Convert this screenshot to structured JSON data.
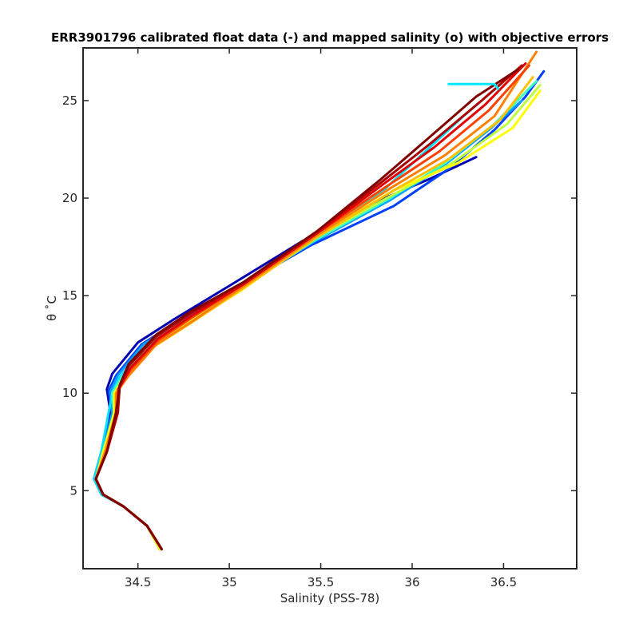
{
  "chart_data": {
    "type": "line",
    "title": "ERR3901796 calibrated float data (-) and mapped salinity (o) with objective errors",
    "xlabel": "Salinity (PSS-78)",
    "ylabel": "θ ˚C",
    "xlim": [
      34.2,
      36.9
    ],
    "ylim": [
      1.0,
      27.7
    ],
    "xticks": [
      34.5,
      35,
      35.5,
      36,
      36.5
    ],
    "yticks": [
      5,
      10,
      15,
      20,
      25
    ],
    "xtick_labels": [
      "34.5",
      "35",
      "35.5",
      "36",
      "36.5"
    ],
    "ytick_labels": [
      "5",
      "10",
      "15",
      "20",
      "25"
    ],
    "grid": false,
    "colormap": "jet (profile order: blue → cyan → yellow → orange → dark red)",
    "series": [
      {
        "color": "#0000b0",
        "x": [
          34.62,
          34.55,
          34.42,
          34.31,
          34.26,
          34.3,
          34.35,
          34.33,
          34.36,
          34.5,
          34.7,
          35.0,
          35.4,
          35.8,
          36.1,
          36.35
        ],
        "y": [
          2.0,
          3.2,
          4.2,
          4.8,
          5.6,
          7.0,
          9.0,
          10.2,
          11.0,
          12.6,
          13.8,
          15.5,
          17.8,
          19.8,
          21.0,
          22.1
        ]
      },
      {
        "color": "#0040ff",
        "x": [
          34.62,
          34.55,
          34.42,
          34.31,
          34.26,
          34.3,
          34.36,
          34.34,
          34.38,
          34.52,
          34.72,
          35.02,
          35.45,
          35.9,
          36.2,
          36.45,
          36.62,
          36.72
        ],
        "y": [
          2.0,
          3.2,
          4.2,
          4.8,
          5.6,
          7.0,
          9.0,
          10.1,
          10.9,
          12.5,
          13.7,
          15.3,
          17.6,
          19.6,
          21.5,
          23.5,
          25.2,
          26.5
        ]
      },
      {
        "color": "#00a0ff",
        "x": [
          34.62,
          34.55,
          34.42,
          34.31,
          34.27,
          34.31,
          34.36,
          34.35,
          34.39,
          34.53,
          34.73,
          35.03,
          35.45,
          35.88,
          36.15,
          36.42,
          36.6
        ],
        "y": [
          2.0,
          3.2,
          4.2,
          4.8,
          5.6,
          7.0,
          9.0,
          10.1,
          10.9,
          12.5,
          13.7,
          15.3,
          17.7,
          19.9,
          21.5,
          23.5,
          25.0
        ]
      },
      {
        "color": "#00e0ff",
        "x": [
          34.62,
          34.55,
          34.42,
          34.3,
          34.26,
          34.3,
          34.34,
          34.36,
          34.4,
          34.54,
          34.74,
          35.04,
          35.44,
          35.82,
          36.05,
          36.28,
          36.48
        ],
        "y": [
          2.0,
          3.2,
          4.2,
          4.8,
          5.6,
          7.0,
          9.0,
          10.0,
          10.8,
          12.4,
          13.6,
          15.3,
          17.8,
          20.2,
          22.2,
          24.2,
          25.8
        ]
      },
      {
        "color": "#40ffc0",
        "x": [
          34.62,
          34.55,
          34.42,
          34.31,
          34.27,
          34.31,
          34.37,
          34.36,
          34.41,
          34.56,
          34.76,
          35.05,
          35.46,
          35.88,
          36.18,
          36.45,
          36.68
        ],
        "y": [
          2.0,
          3.2,
          4.2,
          4.8,
          5.6,
          7.0,
          9.0,
          10.0,
          10.8,
          12.4,
          13.6,
          15.3,
          17.8,
          20.0,
          21.8,
          23.8,
          26.0
        ]
      },
      {
        "color": "#c0ff40",
        "x": [
          34.62,
          34.55,
          34.42,
          34.31,
          34.27,
          34.32,
          34.37,
          34.37,
          34.42,
          34.57,
          34.77,
          35.06,
          35.46,
          35.9,
          36.22,
          36.52,
          36.7
        ],
        "y": [
          2.0,
          3.2,
          4.2,
          4.8,
          5.6,
          7.0,
          9.0,
          10.0,
          10.8,
          12.4,
          13.6,
          15.3,
          17.9,
          20.2,
          21.8,
          23.8,
          25.8
        ]
      },
      {
        "color": "#ffff00",
        "x": [
          34.62,
          34.55,
          34.42,
          34.31,
          34.27,
          34.31,
          34.37,
          34.37,
          34.43,
          34.58,
          34.78,
          35.07,
          35.47,
          35.9,
          36.25,
          36.55,
          36.7
        ],
        "y": [
          2.0,
          3.2,
          4.2,
          4.8,
          5.6,
          7.0,
          9.0,
          10.0,
          10.8,
          12.4,
          13.6,
          15.3,
          18.0,
          20.4,
          21.8,
          23.6,
          25.5
        ]
      },
      {
        "color": "#ffc000",
        "x": [
          34.63,
          34.55,
          34.42,
          34.31,
          34.27,
          34.32,
          34.38,
          34.38,
          34.44,
          34.59,
          34.79,
          35.08,
          35.48,
          35.9,
          36.2,
          36.48,
          36.66
        ],
        "y": [
          2.0,
          3.2,
          4.2,
          4.8,
          5.6,
          7.0,
          9.0,
          10.0,
          10.8,
          12.4,
          13.6,
          15.4,
          18.0,
          20.4,
          22.0,
          24.0,
          26.2
        ]
      },
      {
        "color": "#ff8000",
        "x": [
          34.63,
          34.55,
          34.42,
          34.31,
          34.27,
          34.32,
          34.38,
          34.38,
          34.45,
          34.6,
          34.8,
          35.08,
          35.48,
          35.88,
          36.18,
          36.45,
          36.68
        ],
        "y": [
          2.0,
          3.2,
          4.2,
          4.8,
          5.6,
          7.0,
          9.0,
          10.0,
          10.9,
          12.5,
          13.7,
          15.5,
          18.1,
          20.5,
          22.2,
          24.2,
          27.5
        ]
      },
      {
        "color": "#ff4000",
        "x": [
          34.63,
          34.55,
          34.42,
          34.31,
          34.27,
          34.33,
          34.39,
          34.39,
          34.46,
          34.61,
          34.8,
          35.08,
          35.48,
          35.86,
          36.15,
          36.42,
          36.64
        ],
        "y": [
          2.0,
          3.2,
          4.2,
          4.8,
          5.6,
          7.0,
          9.0,
          10.2,
          11.2,
          12.7,
          13.9,
          15.6,
          18.2,
          20.6,
          22.4,
          24.5,
          26.8
        ]
      },
      {
        "color": "#e00000",
        "x": [
          34.63,
          34.55,
          34.42,
          34.31,
          34.27,
          34.33,
          34.39,
          34.4,
          34.46,
          34.61,
          34.8,
          35.08,
          35.48,
          35.84,
          36.12,
          36.4,
          36.62
        ],
        "y": [
          2.0,
          3.2,
          4.2,
          4.8,
          5.6,
          7.0,
          9.0,
          10.3,
          11.3,
          12.8,
          14.0,
          15.6,
          18.2,
          20.7,
          22.6,
          24.8,
          26.9
        ]
      },
      {
        "color": "#b00000",
        "x": [
          34.63,
          34.55,
          34.42,
          34.31,
          34.27,
          34.33,
          34.39,
          34.4,
          34.45,
          34.6,
          34.79,
          35.08,
          35.48,
          35.83,
          36.1,
          36.38,
          36.6
        ],
        "y": [
          2.0,
          3.2,
          4.2,
          4.8,
          5.6,
          7.0,
          9.0,
          10.4,
          11.4,
          12.9,
          14.1,
          15.7,
          18.3,
          20.8,
          22.8,
          25.0,
          26.8
        ]
      },
      {
        "color": "#800000",
        "x": [
          34.63,
          34.55,
          34.42,
          34.31,
          34.27,
          34.33,
          34.38,
          34.4,
          34.45,
          34.6,
          34.79,
          35.08,
          35.48,
          35.82,
          36.08,
          36.35,
          36.58
        ],
        "y": [
          2.0,
          3.2,
          4.2,
          4.8,
          5.6,
          7.0,
          9.0,
          10.4,
          11.5,
          13.0,
          14.2,
          15.7,
          18.3,
          20.9,
          23.0,
          25.2,
          26.6
        ]
      },
      {
        "color": "#00e8ff",
        "x": [
          36.2,
          36.45,
          36.47
        ],
        "y": [
          25.85,
          25.85,
          25.6
        ]
      }
    ]
  }
}
